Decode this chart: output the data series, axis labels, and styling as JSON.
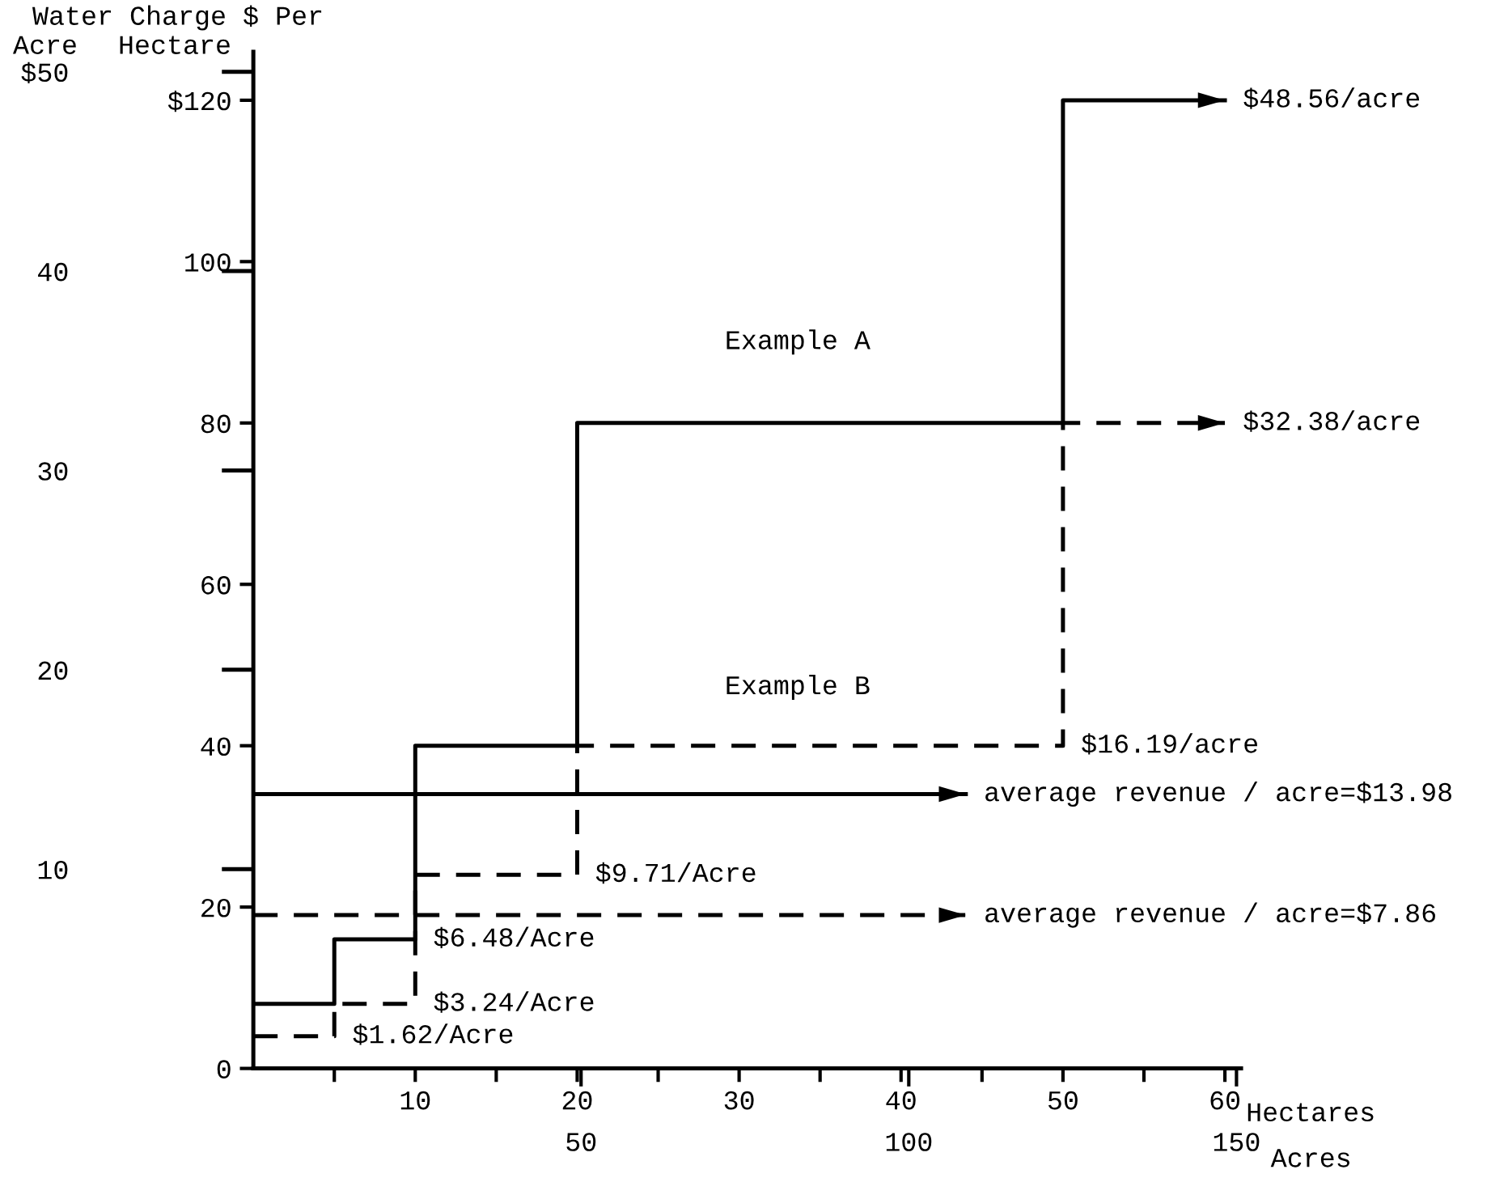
{
  "chart_data": {
    "type": "step",
    "title": "Water Charge $ Per",
    "ylabel": "Hectare",
    "y2label": "Acre",
    "xlabel": "Hectares",
    "x2label": "Acres",
    "series": [
      {
        "name": "Example A",
        "x": [
          0,
          5,
          10,
          20,
          50,
          60
        ],
        "values": [
          8,
          16,
          40,
          80,
          120,
          120
        ],
        "color": "#000000",
        "line_style": "solid"
      },
      {
        "name": "Example B",
        "x": [
          0,
          5,
          10,
          20,
          50,
          60
        ],
        "values": [
          4,
          8,
          24,
          40,
          80,
          80
        ],
        "color": "#000000",
        "line_style": "dashed"
      },
      {
        "type": "line",
        "x": [
          0,
          44
        ],
        "values": [
          34,
          34
        ],
        "color": "#000000",
        "line_style": "solid"
      },
      {
        "type": "line",
        "x": [
          0,
          44
        ],
        "values": [
          19,
          19
        ],
        "color": "#000000",
        "line_style": "dashed"
      }
    ],
    "xlim": [
      0,
      61
    ],
    "xticks": [
      {
        "value": 5,
        "label": null
      },
      10,
      {
        "value": 15,
        "label": null
      },
      20,
      {
        "value": 25,
        "label": null
      },
      30,
      {
        "value": 35,
        "label": null
      },
      40,
      {
        "value": 45,
        "label": null
      },
      50,
      {
        "value": 55,
        "label": null
      },
      60
    ],
    "x2lim": [
      0,
      150.7
    ],
    "x2ticks": [
      50,
      100,
      150
    ],
    "ylim": [
      0,
      126
    ],
    "yticks": [
      0,
      20,
      40,
      60,
      80,
      100,
      {
        "value": 120,
        "label": "$120"
      }
    ],
    "y2lim": [
      0,
      51
    ],
    "y2ticks": [
      10,
      20,
      30,
      40,
      {
        "value": 50,
        "label": "$50"
      }
    ],
    "annotations": [
      {
        "text": "$48.56/acre",
        "x": 60,
        "y": 120
      },
      {
        "text": "$32.38/acre",
        "x": 60,
        "y": 80
      },
      {
        "text": "$16.19/acre",
        "x": 50,
        "y": 40
      },
      {
        "text": "average revenue / acre=$13.98",
        "x": 44,
        "y": 34
      },
      {
        "text": "$9.71/Acre",
        "x": 20,
        "y": 24
      },
      {
        "text": "average revenue / acre=$7.86",
        "x": 44,
        "y": 19
      },
      {
        "text": "$6.48/Acre",
        "x": 10,
        "y": 16
      },
      {
        "text": "$3.24/Acre",
        "x": 10,
        "y": 8
      },
      {
        "text": "$1.62/Acre",
        "x": 5,
        "y": 4
      }
    ],
    "grid": false
  }
}
